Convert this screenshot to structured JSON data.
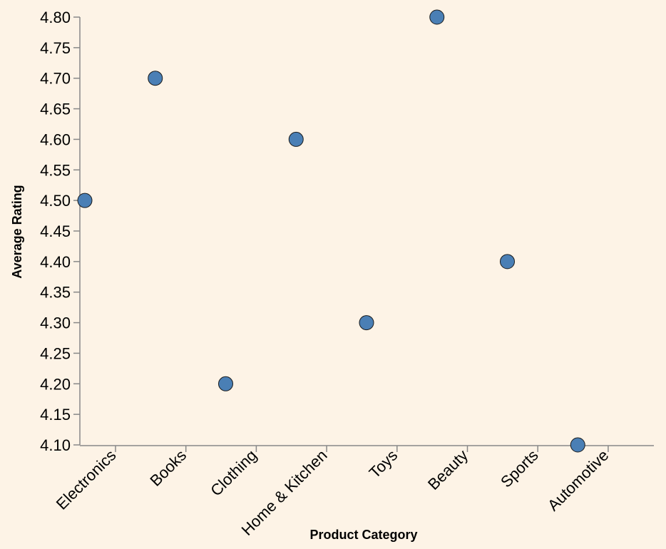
{
  "chart_data": {
    "type": "scatter",
    "title": "",
    "xlabel": "Product Category",
    "ylabel": "Average Rating",
    "categories": [
      "Electronics",
      "Books",
      "Clothing",
      "Home & Kitchen",
      "Toys",
      "Beauty",
      "Sports",
      "Automotive"
    ],
    "points": [
      {
        "x": "Electronics",
        "y": 4.5
      },
      {
        "x": "Books",
        "y": 4.7
      },
      {
        "x": "Clothing",
        "y": 4.2
      },
      {
        "x": "Home & Kitchen",
        "y": 4.6
      },
      {
        "x": "Toys",
        "y": 4.3
      },
      {
        "x": "Beauty",
        "y": 4.8
      },
      {
        "x": "Sports",
        "y": 4.4
      },
      {
        "x": "Automotive",
        "y": 4.1
      }
    ],
    "y_ticks": [
      "4.10",
      "4.15",
      "4.20",
      "4.25",
      "4.30",
      "4.35",
      "4.40",
      "4.45",
      "4.50",
      "4.55",
      "4.60",
      "4.65",
      "4.70",
      "4.75",
      "4.80"
    ],
    "ylim": [
      4.1,
      4.8
    ],
    "grid": false,
    "legend": "none",
    "colors": {
      "background": "#fdf3e6",
      "point_fill": "#4a7fb5",
      "point_stroke": "#1a1a1a",
      "axis": "#888888",
      "text": "#000000"
    }
  }
}
